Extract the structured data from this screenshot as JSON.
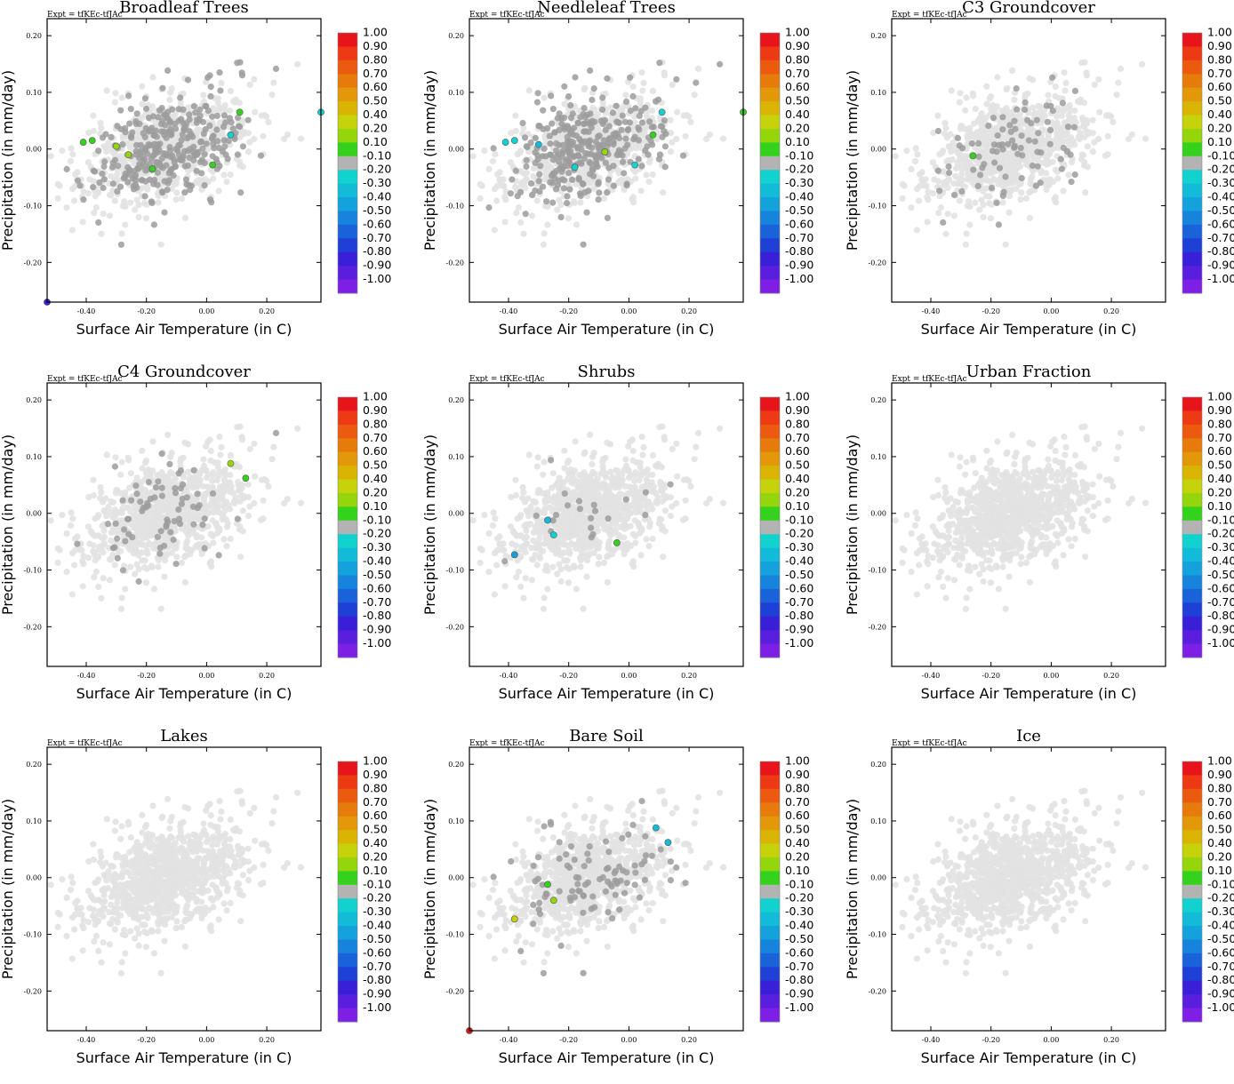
{
  "figure": {
    "expt_label": "Expt = tfKEc-tfJAc",
    "xlabel": "Surface Air Temperature (in C)",
    "ylabel": "Precipitation (in mm/day)",
    "xticks": [
      "-0.40",
      "-0.20",
      "0.00",
      "0.20"
    ],
    "yticks": [
      "0.20",
      "0.10",
      "0.00",
      "-0.10",
      "-0.20"
    ],
    "colorbar": {
      "labels": [
        "1.00",
        "0.90",
        "0.80",
        "0.70",
        "0.60",
        "0.50",
        "0.40",
        "0.20",
        "0.10",
        "-0.10",
        "-0.20",
        "-0.30",
        "-0.40",
        "-0.50",
        "-0.60",
        "-0.70",
        "-0.80",
        "-0.90",
        "-1.00"
      ],
      "colors": [
        "#e8141c",
        "#ee3a14",
        "#ec5a0f",
        "#e67a0a",
        "#e29808",
        "#d9b402",
        "#c6d20a",
        "#94d50c",
        "#35d21d",
        "#b3b3b3",
        "#12d2cf",
        "#12bcd8",
        "#14a2dd",
        "#1684dd",
        "#1a62da",
        "#1e40d6",
        "#3a1fd8",
        "#5a1ede",
        "#7d1fe4"
      ]
    }
  },
  "chart_data": [
    {
      "type": "scatter",
      "title": "Broadleaf Trees",
      "xlim": [
        -0.53,
        0.38
      ],
      "ylim": [
        -0.27,
        0.23
      ],
      "highlights": [
        {
          "x": -0.41,
          "y": 0.012,
          "color": "#35d21d"
        },
        {
          "x": -0.38,
          "y": 0.015,
          "color": "#35d21d"
        },
        {
          "x": -0.3,
          "y": 0.005,
          "color": "#94d50c"
        },
        {
          "x": -0.26,
          "y": -0.01,
          "color": "#94d50c"
        },
        {
          "x": -0.18,
          "y": -0.035,
          "color": "#35d21d"
        },
        {
          "x": 0.02,
          "y": -0.028,
          "color": "#35d21d"
        },
        {
          "x": 0.08,
          "y": 0.025,
          "color": "#12d2cf"
        },
        {
          "x": 0.11,
          "y": 0.065,
          "color": "#35d21d"
        },
        {
          "x": 0.38,
          "y": 0.065,
          "color": "#12d2cf"
        },
        {
          "x": -0.53,
          "y": -0.27,
          "color": "#3a1fd8"
        }
      ]
    },
    {
      "type": "scatter",
      "title": "Needleleaf Trees",
      "xlim": [
        -0.53,
        0.38
      ],
      "ylim": [
        -0.27,
        0.23
      ],
      "highlights": [
        {
          "x": -0.41,
          "y": 0.012,
          "color": "#12d2cf"
        },
        {
          "x": -0.38,
          "y": 0.015,
          "color": "#12d2cf"
        },
        {
          "x": -0.3,
          "y": 0.008,
          "color": "#12bcd8"
        },
        {
          "x": -0.18,
          "y": -0.032,
          "color": "#12d2cf"
        },
        {
          "x": -0.08,
          "y": -0.005,
          "color": "#94d50c"
        },
        {
          "x": 0.02,
          "y": -0.028,
          "color": "#12d2cf"
        },
        {
          "x": 0.08,
          "y": 0.025,
          "color": "#35d21d"
        },
        {
          "x": 0.11,
          "y": 0.065,
          "color": "#12d2cf"
        },
        {
          "x": 0.38,
          "y": 0.065,
          "color": "#35d21d"
        }
      ]
    },
    {
      "type": "scatter",
      "title": "C3 Groundcover",
      "xlim": [
        -0.53,
        0.38
      ],
      "ylim": [
        -0.27,
        0.23
      ],
      "highlights": [
        {
          "x": -0.26,
          "y": -0.012,
          "color": "#35d21d"
        }
      ]
    },
    {
      "type": "scatter",
      "title": "C4 Groundcover",
      "xlim": [
        -0.53,
        0.38
      ],
      "ylim": [
        -0.27,
        0.23
      ],
      "highlights": [
        {
          "x": 0.08,
          "y": 0.088,
          "color": "#94d50c"
        },
        {
          "x": 0.13,
          "y": 0.062,
          "color": "#35d21d"
        }
      ]
    },
    {
      "type": "scatter",
      "title": "Shrubs",
      "xlim": [
        -0.53,
        0.38
      ],
      "ylim": [
        -0.27,
        0.23
      ],
      "highlights": [
        {
          "x": -0.27,
          "y": -0.012,
          "color": "#12bcd8"
        },
        {
          "x": -0.25,
          "y": -0.038,
          "color": "#12d2cf"
        },
        {
          "x": -0.38,
          "y": -0.073,
          "color": "#14a2dd"
        },
        {
          "x": -0.04,
          "y": -0.052,
          "color": "#35d21d"
        }
      ]
    },
    {
      "type": "scatter",
      "title": "Urban Fraction",
      "xlim": [
        -0.53,
        0.38
      ],
      "ylim": [
        -0.27,
        0.23
      ],
      "highlights": []
    },
    {
      "type": "scatter",
      "title": "Lakes",
      "xlim": [
        -0.53,
        0.38
      ],
      "ylim": [
        -0.27,
        0.23
      ],
      "highlights": []
    },
    {
      "type": "scatter",
      "title": "Bare Soil",
      "xlim": [
        -0.53,
        0.38
      ],
      "ylim": [
        -0.27,
        0.23
      ],
      "highlights": [
        {
          "x": -0.27,
          "y": -0.012,
          "color": "#35d21d"
        },
        {
          "x": -0.25,
          "y": -0.04,
          "color": "#94d50c"
        },
        {
          "x": -0.38,
          "y": -0.073,
          "color": "#c6d20a"
        },
        {
          "x": 0.09,
          "y": 0.088,
          "color": "#12bcd8"
        },
        {
          "x": 0.13,
          "y": 0.062,
          "color": "#12bcd8"
        },
        {
          "x": -0.53,
          "y": -0.27,
          "color": "#e8141c"
        }
      ]
    },
    {
      "type": "scatter",
      "title": "Ice",
      "xlim": [
        -0.53,
        0.38
      ],
      "ylim": [
        -0.27,
        0.23
      ],
      "highlights": []
    }
  ]
}
